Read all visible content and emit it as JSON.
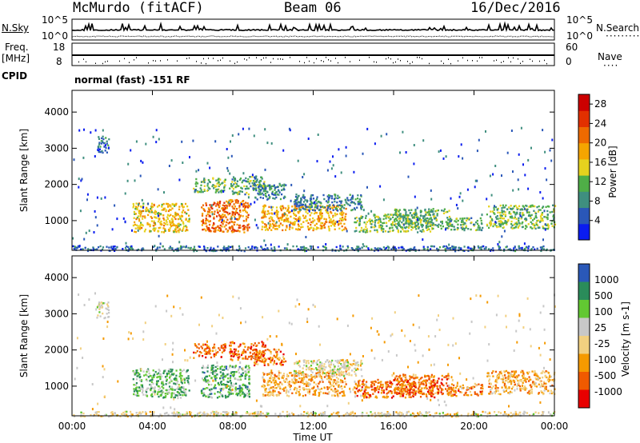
{
  "header": {
    "station": "McMurdo (fitACF)",
    "beam": "Beam 06",
    "date": "16/Dec/2016"
  },
  "summary_panels": {
    "nsky_label": "N.Sky",
    "nsearch_label": "N.Search",
    "freq_label_1": "Freq.",
    "freq_label_2": "[MHz]",
    "nave_label": "Nave",
    "cpid_label": "CPID",
    "noise_top_tick": "10^5",
    "noise_bottom_tick": "10^0",
    "freq_ticks": [
      "18",
      "8"
    ],
    "nave_ticks": [
      "60",
      "0"
    ],
    "cpid_text": "normal (fast) -151 RF"
  },
  "chart_data": [
    {
      "type": "heatmap",
      "panel": "power",
      "ylabel": "Slant Range [km]",
      "xlabel": "",
      "x_ticks": [
        "00:00",
        "04:00",
        "08:00",
        "12:00",
        "16:00",
        "20:00",
        "00:00"
      ],
      "xlim_hours": [
        0,
        24
      ],
      "y_ticks": [
        "1000",
        "2000",
        "3000",
        "4000"
      ],
      "ylim": [
        180,
        4600
      ],
      "colorbar_label": "Power [dB]",
      "colorbar_ticks": [
        "4",
        "8",
        "12",
        "16",
        "20",
        "24",
        "28"
      ],
      "colorbar_range": [
        0,
        30
      ],
      "colors": [
        "#0a1cf0",
        "#2a57b8",
        "#3f8f7f",
        "#4fae47",
        "#e6d21e",
        "#f5a500",
        "#ee6a00",
        "#e23000",
        "#cc0000"
      ],
      "echo_regions": [
        {
          "t0": 0.0,
          "t1": 24.0,
          "r0": 180,
          "r1": 320,
          "level": 1.4
        },
        {
          "t0": 1.2,
          "t1": 1.8,
          "r0": 2900,
          "r1": 3350,
          "level": 1.5
        },
        {
          "t0": 3.0,
          "t1": 5.8,
          "r0": 700,
          "r1": 1500,
          "level": 4.5
        },
        {
          "t0": 6.0,
          "t1": 7.6,
          "r0": 1800,
          "r1": 2200,
          "level": 2.8
        },
        {
          "t0": 6.4,
          "t1": 8.8,
          "r0": 700,
          "r1": 1600,
          "level": 6.0
        },
        {
          "t0": 7.8,
          "t1": 9.6,
          "r0": 1750,
          "r1": 2250,
          "level": 2.6
        },
        {
          "t0": 9.0,
          "t1": 10.6,
          "r0": 1600,
          "r1": 2050,
          "level": 2.0
        },
        {
          "t0": 9.4,
          "t1": 13.6,
          "r0": 750,
          "r1": 1450,
          "level": 4.8
        },
        {
          "t0": 11.0,
          "t1": 14.4,
          "r0": 1300,
          "r1": 1750,
          "level": 1.8
        },
        {
          "t0": 14.0,
          "t1": 18.0,
          "r0": 700,
          "r1": 1200,
          "level": 3.2
        },
        {
          "t0": 16.0,
          "t1": 18.8,
          "r0": 800,
          "r1": 1350,
          "level": 2.8
        },
        {
          "t0": 18.6,
          "t1": 20.4,
          "r0": 750,
          "r1": 1100,
          "level": 2.6
        },
        {
          "t0": 20.6,
          "t1": 24.0,
          "r0": 800,
          "r1": 1450,
          "level": 3.0
        }
      ]
    },
    {
      "type": "heatmap",
      "panel": "velocity",
      "ylabel": "Slant Range [km]",
      "xlabel": "Time UT",
      "x_ticks": [
        "00:00",
        "04:00",
        "08:00",
        "12:00",
        "16:00",
        "20:00",
        "00:00"
      ],
      "xlim_hours": [
        0,
        24
      ],
      "y_ticks": [
        "1000",
        "2000",
        "3000",
        "4000"
      ],
      "ylim": [
        180,
        4600
      ],
      "colorbar_label": "Velocity [m s-1]",
      "colorbar_ticks": [
        "1000",
        "500",
        "100",
        "25",
        "-25",
        "-100",
        "-500",
        "-1000"
      ],
      "colors": [
        "#e80000",
        "#f05a00",
        "#f59a00",
        "#f2d080",
        "#c8c8c8",
        "#62c832",
        "#2a8c5a",
        "#2a58b8"
      ],
      "echo_regions": [
        {
          "t0": 0.0,
          "t1": 24.0,
          "r0": 180,
          "r1": 320,
          "level": 3.5
        },
        {
          "t0": 1.2,
          "t1": 1.8,
          "r0": 2900,
          "r1": 3350,
          "level": 4.0
        },
        {
          "t0": 3.0,
          "t1": 5.8,
          "r0": 700,
          "r1": 1500,
          "level": 5.2
        },
        {
          "t0": 6.0,
          "t1": 7.6,
          "r0": 1800,
          "r1": 2200,
          "level": 1.2
        },
        {
          "t0": 6.4,
          "t1": 8.8,
          "r0": 700,
          "r1": 1600,
          "level": 5.4
        },
        {
          "t0": 7.8,
          "t1": 9.6,
          "r0": 1750,
          "r1": 2250,
          "level": 1.2
        },
        {
          "t0": 9.0,
          "t1": 10.6,
          "r0": 1600,
          "r1": 2050,
          "level": 1.3
        },
        {
          "t0": 9.4,
          "t1": 13.6,
          "r0": 750,
          "r1": 1450,
          "level": 2.3
        },
        {
          "t0": 11.0,
          "t1": 14.4,
          "r0": 1300,
          "r1": 1750,
          "level": 3.6
        },
        {
          "t0": 14.0,
          "t1": 18.0,
          "r0": 700,
          "r1": 1200,
          "level": 1.2
        },
        {
          "t0": 16.0,
          "t1": 18.8,
          "r0": 800,
          "r1": 1350,
          "level": 1.4
        },
        {
          "t0": 18.6,
          "t1": 20.4,
          "r0": 750,
          "r1": 1100,
          "level": 1.6
        },
        {
          "t0": 20.6,
          "t1": 24.0,
          "r0": 800,
          "r1": 1450,
          "level": 2.4
        }
      ]
    }
  ]
}
